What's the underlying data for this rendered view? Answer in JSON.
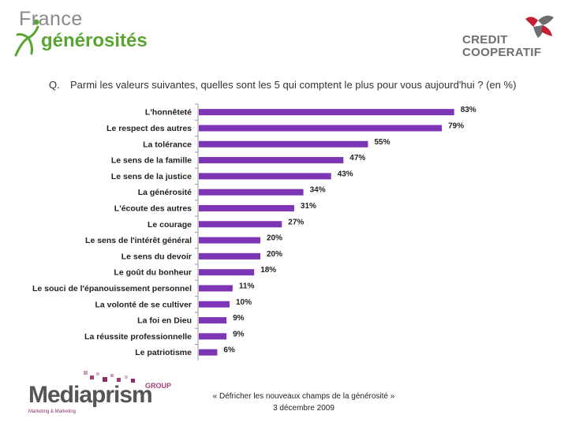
{
  "logos": {
    "france_generosites": {
      "line1": "France",
      "line2": "générosités"
    },
    "credit_cooperatif": {
      "line1": "CREDIT",
      "line2": "COOPERATIF"
    },
    "mediaprism": {
      "name": "Mediaprism",
      "group": "GROUP",
      "tagline": "Marketing & Marketing"
    }
  },
  "question": {
    "prefix": "Q.",
    "text": "Parmi les valeurs suivantes, quelles sont les 5 qui comptent le plus pour vous aujourd'hui ? (en %)"
  },
  "chart_data": {
    "type": "bar",
    "orientation": "horizontal",
    "categories": [
      "L'honnêteté",
      "Le respect des autres",
      "La tolérance",
      "Le sens de la famille",
      "Le sens de la justice",
      "La générosité",
      "L'écoute des autres",
      "Le courage",
      "Le sens de l'intérêt général",
      "Le sens du devoir",
      "Le goût du bonheur",
      "Le souci de l'épanouissement personnel",
      "La volonté de se cultiver",
      "La foi en Dieu",
      "La réussite professionnelle",
      "Le patriotisme"
    ],
    "values": [
      83,
      79,
      55,
      47,
      43,
      34,
      31,
      27,
      20,
      20,
      18,
      11,
      10,
      9,
      9,
      6
    ],
    "value_labels": [
      "83%",
      "79%",
      "55%",
      "47%",
      "43%",
      "34%",
      "31%",
      "27%",
      "20%",
      "20%",
      "18%",
      "11%",
      "10%",
      "9%",
      "9%",
      "6%"
    ],
    "xlim": [
      0,
      100
    ],
    "bar_color": "#7b35b5",
    "grid": false
  },
  "footer": {
    "line1": "« Défricher les nouveaux champs de la générosité »",
    "line2": "3 décembre 2009"
  },
  "colors": {
    "green": "#5aa532",
    "grey": "#6d6e71",
    "red": "#c62035",
    "purple": "#7b35b5",
    "magenta": "#a43f75"
  }
}
